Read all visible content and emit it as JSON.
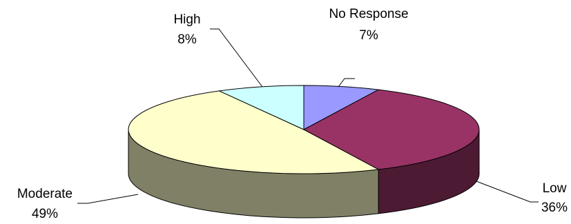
{
  "chart_data": {
    "type": "pie",
    "style": "3d",
    "title": "",
    "slices": [
      {
        "label": "No Response",
        "value": 7,
        "display": "7%",
        "color": "#9999FF"
      },
      {
        "label": "Low",
        "value": 36,
        "display": "36%",
        "color": "#993366"
      },
      {
        "label": "Moderate",
        "value": 49,
        "display": "49%",
        "color": "#FFFFCC"
      },
      {
        "label": "High",
        "value": 8,
        "display": "8%",
        "color": "#CCFFFF"
      }
    ],
    "legend": "none",
    "data_labels": "outside-with-leader-lines"
  }
}
